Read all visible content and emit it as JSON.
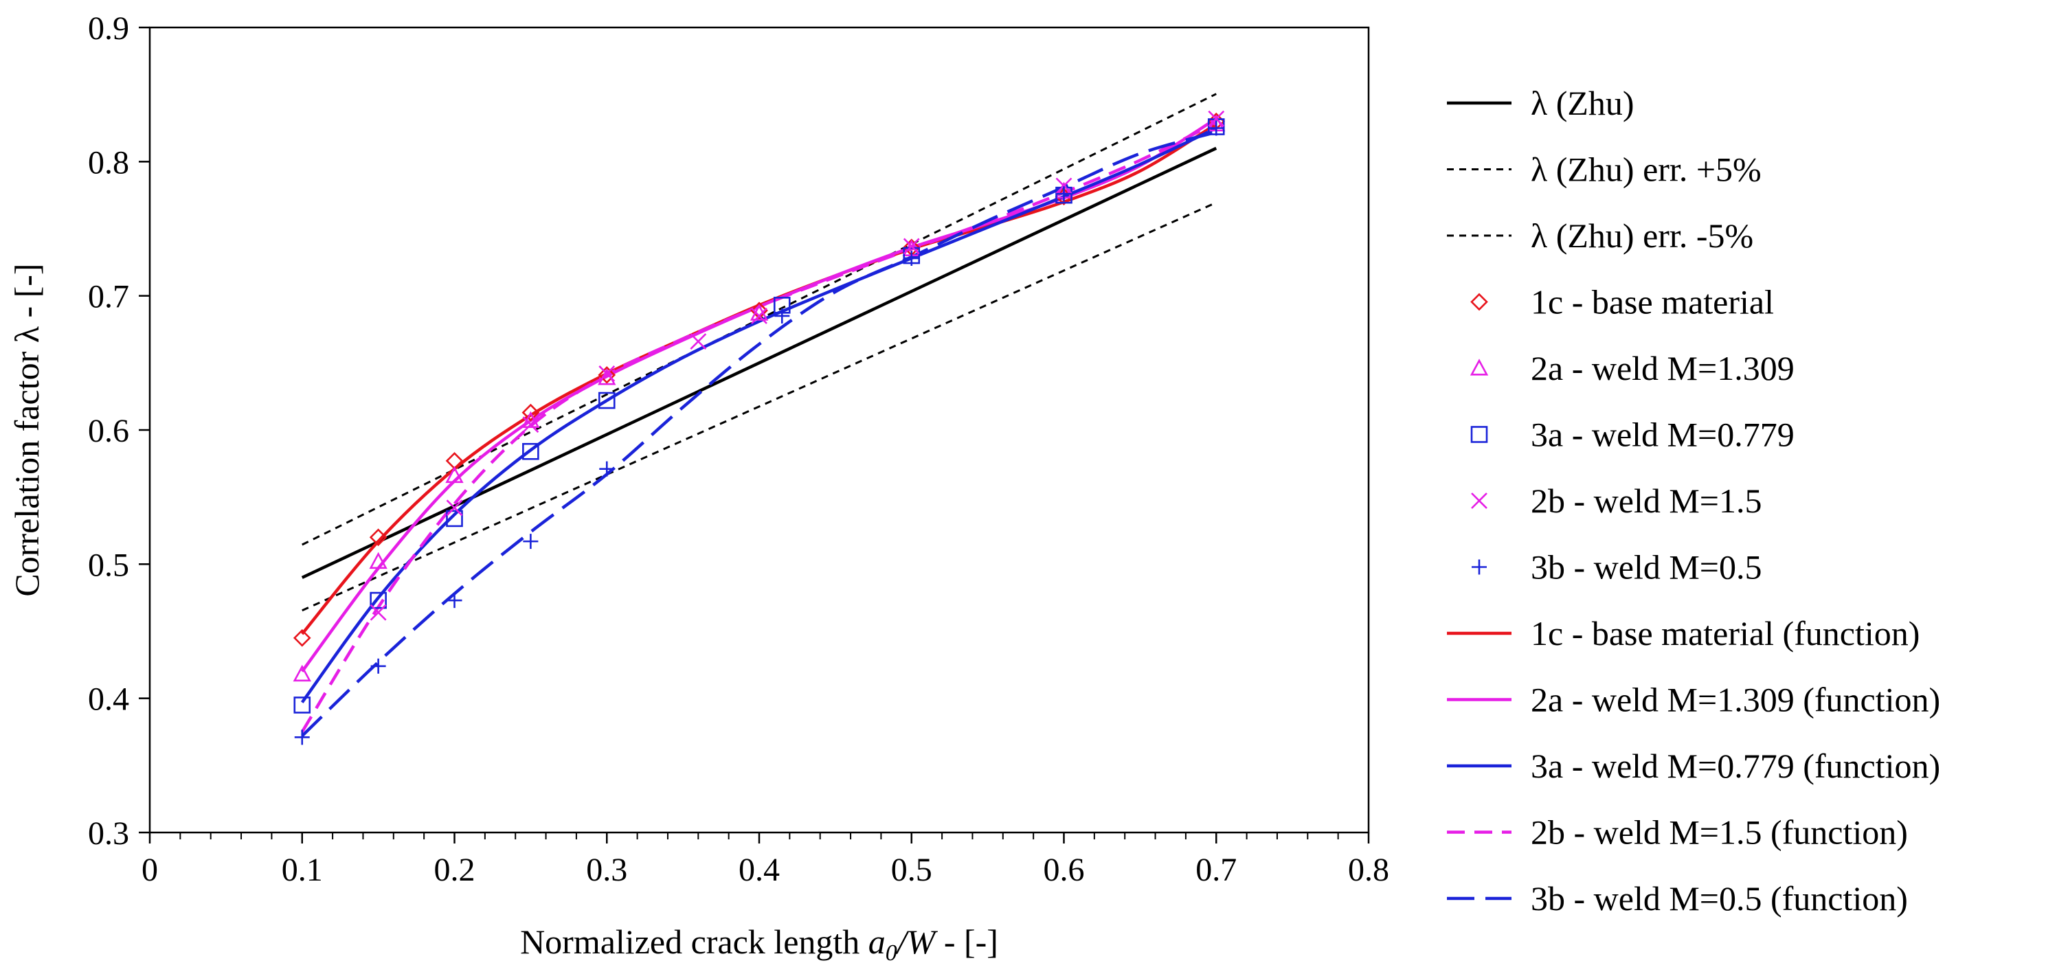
{
  "chart_data": {
    "type": "line",
    "xlabel": "Normalized crack length a0/W - [-]",
    "xlabel_parts": {
      "pre": "Normalized crack length ",
      "a": "a",
      "sub": "0",
      "w": "/W",
      "post": " - [-]"
    },
    "ylabel": "Correlation factor λ - [-]",
    "xlim": [
      0,
      0.8
    ],
    "ylim": [
      0.3,
      0.9
    ],
    "x_ticks": [
      0,
      0.1,
      0.2,
      0.3,
      0.4,
      0.5,
      0.6,
      0.7,
      0.8
    ],
    "x_tick_labels": [
      "0",
      "0.1",
      "0.2",
      "0.3",
      "0.4",
      "0.5",
      "0.6",
      "0.7",
      "0.8"
    ],
    "x_minor_step": 0.02,
    "y_ticks": [
      0.3,
      0.4,
      0.5,
      0.6,
      0.7,
      0.8,
      0.9
    ],
    "y_tick_labels": [
      "0.3",
      "0.4",
      "0.5",
      "0.6",
      "0.7",
      "0.8",
      "0.9"
    ],
    "grid": false,
    "legend_position": "right",
    "series": [
      {
        "name": "λ (Zhu)",
        "kind": "line",
        "color": "#000000",
        "dash": "solid",
        "x": [
          0.1,
          0.7
        ],
        "y": [
          0.49,
          0.81
        ]
      },
      {
        "name": "λ (Zhu) err. +5%",
        "kind": "line",
        "color": "#000000",
        "dash": "short",
        "x": [
          0.1,
          0.7
        ],
        "y": [
          0.5145,
          0.8505
        ]
      },
      {
        "name": "λ (Zhu) err. -5%",
        "kind": "line",
        "color": "#000000",
        "dash": "short",
        "x": [
          0.1,
          0.7
        ],
        "y": [
          0.4655,
          0.7695
        ]
      },
      {
        "name": "1c - base material",
        "kind": "marker",
        "marker": "diamond",
        "color": "#e8141c",
        "x": [
          0.1,
          0.15,
          0.2,
          0.25,
          0.3,
          0.4,
          0.5,
          0.6,
          0.7
        ],
        "y": [
          0.445,
          0.52,
          0.577,
          0.613,
          0.641,
          0.689,
          0.736,
          0.774,
          0.83
        ]
      },
      {
        "name": "2a - weld M=1.309",
        "kind": "marker",
        "marker": "triangle",
        "color": "#e61ee6",
        "x": [
          0.1,
          0.15,
          0.2,
          0.25,
          0.3,
          0.4,
          0.5,
          0.6,
          0.7
        ],
        "y": [
          0.418,
          0.502,
          0.566,
          0.607,
          0.639,
          0.687,
          0.735,
          0.778,
          0.828
        ]
      },
      {
        "name": "3a - weld M=0.779",
        "kind": "marker",
        "marker": "square",
        "color": "#1a23d9",
        "x": [
          0.1,
          0.15,
          0.2,
          0.25,
          0.3,
          0.415,
          0.5,
          0.6,
          0.7
        ],
        "y": [
          0.395,
          0.473,
          0.534,
          0.584,
          0.622,
          0.693,
          0.73,
          0.775,
          0.826
        ]
      },
      {
        "name": "2b - weld M=1.5",
        "kind": "marker",
        "marker": "x",
        "color": "#e61ee6",
        "x": [
          0.15,
          0.2,
          0.25,
          0.3,
          0.36,
          0.4,
          0.5,
          0.6,
          0.7
        ],
        "y": [
          0.464,
          0.542,
          0.604,
          0.642,
          0.666,
          0.685,
          0.737,
          0.782,
          0.832
        ]
      },
      {
        "name": "3b - weld M=0.5",
        "kind": "marker",
        "marker": "plus",
        "color": "#1a23d9",
        "x": [
          0.1,
          0.15,
          0.2,
          0.25,
          0.3,
          0.415,
          0.5,
          0.6,
          0.7
        ],
        "y": [
          0.371,
          0.424,
          0.473,
          0.517,
          0.571,
          0.685,
          0.728,
          0.776,
          0.825
        ]
      },
      {
        "name": "1c - base material (function)",
        "kind": "line",
        "color": "#e8141c",
        "dash": "solid",
        "x": [
          0.1,
          0.15,
          0.2,
          0.25,
          0.3,
          0.35,
          0.4,
          0.45,
          0.5,
          0.55,
          0.6,
          0.65,
          0.7
        ],
        "y": [
          0.448,
          0.517,
          0.571,
          0.611,
          0.642,
          0.668,
          0.693,
          0.715,
          0.735,
          0.752,
          0.77,
          0.793,
          0.828
        ]
      },
      {
        "name": "2a - weld M=1.309 (function)",
        "kind": "line",
        "color": "#e61ee6",
        "dash": "solid",
        "x": [
          0.1,
          0.15,
          0.2,
          0.25,
          0.3,
          0.35,
          0.4,
          0.45,
          0.5,
          0.55,
          0.6,
          0.65,
          0.7
        ],
        "y": [
          0.42,
          0.497,
          0.562,
          0.607,
          0.64,
          0.667,
          0.692,
          0.715,
          0.736,
          0.754,
          0.773,
          0.797,
          0.832
        ]
      },
      {
        "name": "3a - weld M=0.779 (function)",
        "kind": "line",
        "color": "#1a23d9",
        "dash": "solid",
        "x": [
          0.1,
          0.15,
          0.2,
          0.25,
          0.3,
          0.35,
          0.4,
          0.45,
          0.5,
          0.55,
          0.6,
          0.65,
          0.7
        ],
        "y": [
          0.397,
          0.475,
          0.537,
          0.585,
          0.622,
          0.654,
          0.681,
          0.705,
          0.728,
          0.751,
          0.774,
          0.798,
          0.825
        ]
      },
      {
        "name": "2b - weld M=1.5 (function)",
        "kind": "line",
        "color": "#e61ee6",
        "dash": "dash",
        "x": [
          0.1,
          0.15,
          0.2,
          0.25,
          0.3,
          0.35,
          0.4,
          0.45,
          0.5,
          0.55,
          0.6,
          0.65,
          0.7
        ],
        "y": [
          0.375,
          0.468,
          0.545,
          0.603,
          0.641,
          0.668,
          0.692,
          0.714,
          0.735,
          0.755,
          0.777,
          0.801,
          0.829
        ]
      },
      {
        "name": "3b - weld M=0.5 (function)",
        "kind": "line",
        "color": "#1a23d9",
        "dash": "longdash",
        "x": [
          0.1,
          0.15,
          0.2,
          0.25,
          0.3,
          0.35,
          0.4,
          0.45,
          0.5,
          0.55,
          0.6,
          0.65,
          0.7
        ],
        "y": [
          0.372,
          0.427,
          0.478,
          0.524,
          0.567,
          0.617,
          0.664,
          0.703,
          0.729,
          0.756,
          0.781,
          0.806,
          0.822
        ]
      }
    ]
  }
}
